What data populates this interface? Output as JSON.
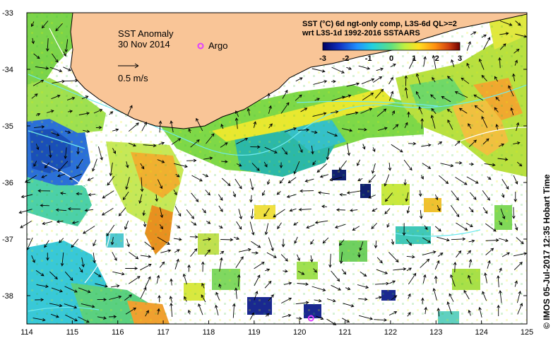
{
  "map": {
    "title": "SST Anomaly",
    "date": "30 Nov 2014",
    "argo_label": "Argo",
    "vector_scale_label": "0.5 m/s",
    "product_line1": "SST (°C) 6d ngt-only comp, L3S-6d QL>=2",
    "product_line2": "wrt L3S-1d 1992-2016 SSTAARS",
    "credit": "© IMOS 05-Jul-2017 12:35 Hobart Time",
    "x_ticks": [
      "114",
      "115",
      "116",
      "117",
      "118",
      "119",
      "120",
      "121",
      "122",
      "123",
      "124",
      "125"
    ],
    "y_ticks": [
      "-33",
      "-34",
      "-35",
      "-36",
      "-37",
      "-38"
    ],
    "colorbar_ticks": [
      "-3",
      "-2",
      "-1",
      "0",
      "1",
      "2",
      "3"
    ],
    "colorbar_range": [
      -3,
      3
    ],
    "lon_range": [
      114,
      125
    ],
    "lat_range": [
      -38.5,
      -33
    ],
    "colors": {
      "land": "#f9c597",
      "coast": "#000000",
      "current_lines": "#6fe9f0",
      "argo_marker": "#e040ff",
      "frame": "#000000"
    },
    "argo_floats": [
      {
        "lon": 120.25,
        "lat": -38.4
      }
    ]
  }
}
